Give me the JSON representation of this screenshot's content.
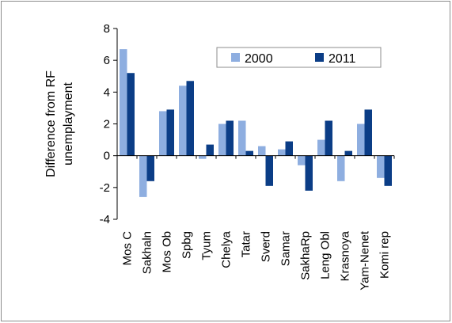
{
  "chart_data": {
    "type": "bar",
    "categories": [
      "Mos C",
      "Sakhaln",
      "Mos Ob",
      "Spbg",
      "Tyum",
      "Chelya",
      "Tatar",
      "Sverd",
      "Samar",
      "SakhaRp",
      "Leng Obl",
      "Krasnoya",
      "Yam-Nenet",
      "Komi rep"
    ],
    "series": [
      {
        "name": "2000",
        "color": "#8eaee0",
        "values": [
          6.7,
          -2.6,
          2.8,
          4.4,
          -0.2,
          2.0,
          2.2,
          0.6,
          0.4,
          -0.6,
          1.0,
          -1.6,
          2.0,
          -1.4
        ]
      },
      {
        "name": "2011",
        "color": "#0b3d86",
        "values": [
          5.2,
          -1.6,
          2.9,
          4.7,
          0.7,
          2.2,
          0.3,
          -1.9,
          0.9,
          -2.2,
          2.2,
          0.3,
          2.9,
          -1.9
        ]
      }
    ],
    "ylabel": [
      "Difference from RF",
      "unemplayment"
    ],
    "ylim": [
      -4,
      8
    ],
    "yticks": [
      8,
      6,
      4,
      2,
      0,
      -2,
      -4
    ],
    "grid": false,
    "legend_position": "top-right"
  }
}
